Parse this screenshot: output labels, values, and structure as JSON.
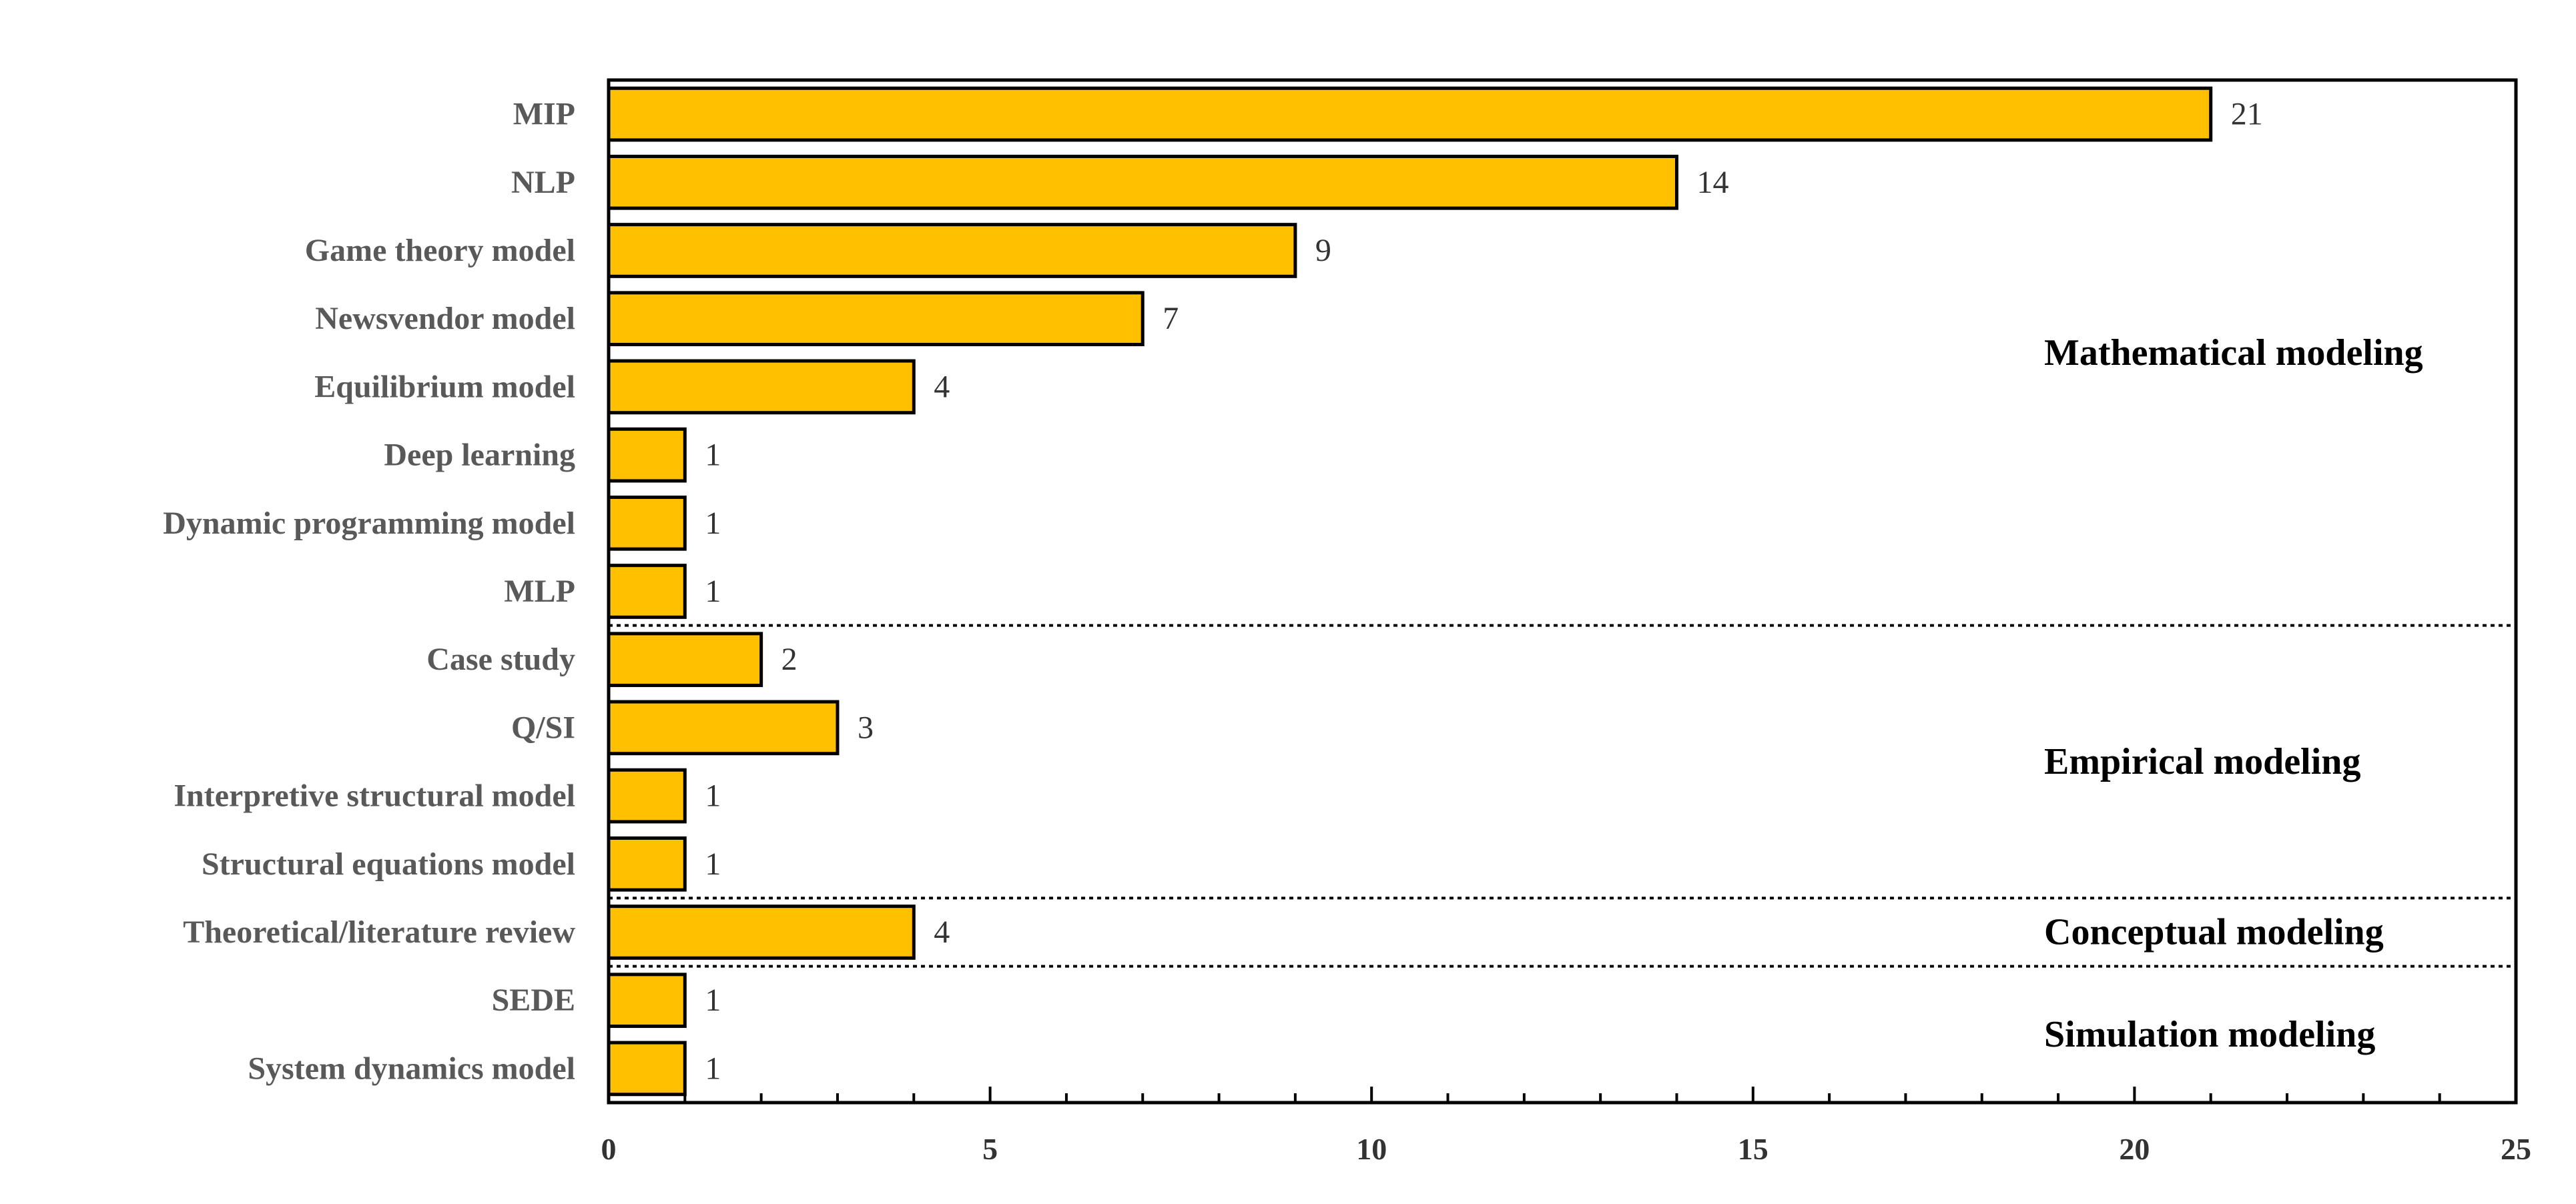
{
  "chart_data": {
    "type": "bar",
    "orientation": "horizontal",
    "title": "",
    "xlabel": "",
    "ylabel": "",
    "xlim": [
      0,
      25
    ],
    "x_ticks": [
      0,
      5,
      10,
      15,
      20,
      25
    ],
    "grid": false,
    "bar_color": "#FFC000",
    "bar_edge_color": "#000000",
    "categories": [
      "MIP",
      "NLP",
      "Game theory model",
      "Newsvendor model",
      "Equilibrium model",
      "Deep learning",
      "Dynamic programming model",
      "MLP",
      "Case study",
      "Q/SI",
      "Interpretive structural model",
      "Structural equations model",
      "Theoretical/literature review",
      "SEDE",
      "System dynamics model"
    ],
    "values": [
      21,
      14,
      9,
      7,
      4,
      1,
      1,
      1,
      2,
      3,
      1,
      1,
      4,
      1,
      1
    ],
    "groups": [
      {
        "name": "Mathematical modeling",
        "start": 0,
        "end": 7
      },
      {
        "name": "Empirical modeling",
        "start": 8,
        "end": 11
      },
      {
        "name": "Conceptual modeling",
        "start": 12,
        "end": 12
      },
      {
        "name": "Simulation modeling",
        "start": 13,
        "end": 14
      }
    ]
  }
}
